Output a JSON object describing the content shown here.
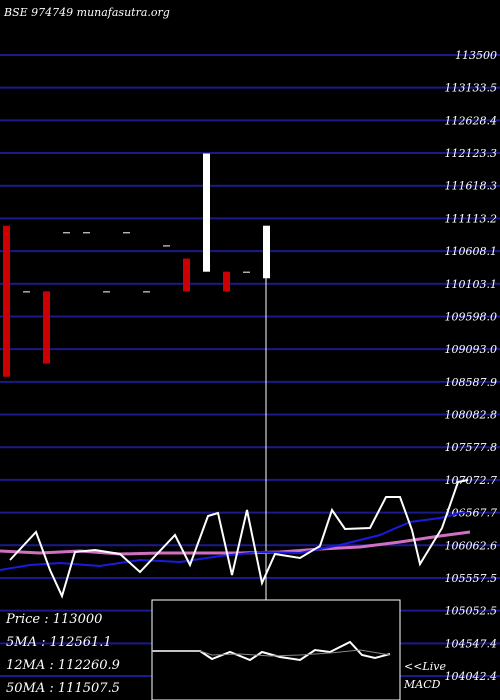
{
  "header": {
    "title": "BSE 974749 munafasutra.org"
  },
  "info": {
    "price_label": "Price",
    "price_value": "113000",
    "ma5_label": "5MA",
    "ma5_value": "112561.1",
    "ma12_label": "12MA",
    "ma12_value": "112260.9",
    "ma50_label": "50MA",
    "ma50_value": "111507.5"
  },
  "macd": {
    "live_label": "<<Live",
    "title": "MACD"
  },
  "colors": {
    "background": "#000000",
    "grid": "#1a1a8c",
    "up": "#ffffff",
    "down": "#cc0000",
    "ma_short": "#ffffff",
    "ma_mid": "#1a1ae0",
    "ma_long": "#d070c0"
  },
  "chart_data": {
    "type": "candlestick",
    "ylim": [
      104042.4,
      113500
    ],
    "y_ticks": [
      "113500",
      "113133.5",
      "112628.4",
      "112123.3",
      "111618.3",
      "111113.2",
      "110608.1",
      "110103.1",
      "109598.0",
      "109093.0",
      "108587.9",
      "108082.8",
      "107577.8",
      "107072.7",
      "106567.7",
      "106062.6",
      "105557.5",
      "105052.5",
      "104547.4",
      "104042.4"
    ],
    "candles": [
      {
        "o": 110900,
        "h": 110900,
        "c": 108600,
        "l": 108600
      },
      {
        "o": 109900,
        "h": 109900,
        "c": 109900,
        "l": 109900
      },
      {
        "o": 109900,
        "h": 109900,
        "c": 108800,
        "l": 108800
      },
      {
        "o": 110800,
        "h": 110800,
        "c": 110800,
        "l": 110800
      },
      {
        "o": 110800,
        "h": 110800,
        "c": 110800,
        "l": 110800
      },
      {
        "o": 109900,
        "h": 109900,
        "c": 109900,
        "l": 109900
      },
      {
        "o": 110800,
        "h": 110800,
        "c": 110800,
        "l": 110800
      },
      {
        "o": 109900,
        "h": 109900,
        "c": 109900,
        "l": 109900
      },
      {
        "o": 110600,
        "h": 110600,
        "c": 110600,
        "l": 110600
      },
      {
        "o": 110400,
        "h": 110400,
        "c": 109900,
        "l": 109900
      },
      {
        "o": 110200,
        "h": 112000,
        "c": 112000,
        "l": 110200
      },
      {
        "o": 110200,
        "h": 110200,
        "c": 109900,
        "l": 109900
      },
      {
        "o": 110200,
        "h": 110200,
        "c": 110200,
        "l": 110200
      },
      {
        "o": 110100,
        "h": 110900,
        "c": 110900,
        "l": 104042
      }
    ]
  }
}
